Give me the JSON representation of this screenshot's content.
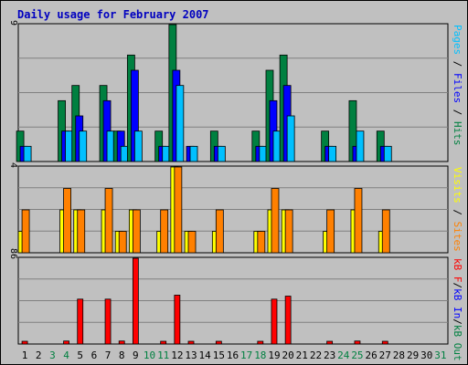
{
  "chart_data": {
    "type": "bar",
    "title": "Daily usage for February 2007",
    "days": [
      {
        "label": "1",
        "weekend": false
      },
      {
        "label": "2",
        "weekend": false
      },
      {
        "label": "3",
        "weekend": true
      },
      {
        "label": "4",
        "weekend": true
      },
      {
        "label": "5",
        "weekend": false
      },
      {
        "label": "6",
        "weekend": false
      },
      {
        "label": "7",
        "weekend": false
      },
      {
        "label": "8",
        "weekend": false
      },
      {
        "label": "9",
        "weekend": false
      },
      {
        "label": "10",
        "weekend": true
      },
      {
        "label": "11",
        "weekend": true
      },
      {
        "label": "12",
        "weekend": false
      },
      {
        "label": "13",
        "weekend": false
      },
      {
        "label": "14",
        "weekend": false
      },
      {
        "label": "15",
        "weekend": false
      },
      {
        "label": "16",
        "weekend": false
      },
      {
        "label": "17",
        "weekend": true
      },
      {
        "label": "18",
        "weekend": true
      },
      {
        "label": "19",
        "weekend": false
      },
      {
        "label": "20",
        "weekend": false
      },
      {
        "label": "21",
        "weekend": false
      },
      {
        "label": "22",
        "weekend": false
      },
      {
        "label": "23",
        "weekend": false
      },
      {
        "label": "24",
        "weekend": true
      },
      {
        "label": "25",
        "weekend": true
      },
      {
        "label": "26",
        "weekend": false
      },
      {
        "label": "27",
        "weekend": false
      },
      {
        "label": "28",
        "weekend": false
      },
      {
        "label": "29",
        "weekend": false
      },
      {
        "label": "30",
        "weekend": false
      },
      {
        "label": "31",
        "weekend": true
      }
    ],
    "panels": [
      {
        "id": "hits",
        "ymax": 9,
        "ymax_label": "9",
        "legend": [
          {
            "text": "Pages",
            "color": "#00c0ff"
          },
          {
            "text": " / ",
            "color": "#000000"
          },
          {
            "text": "Files",
            "color": "#0000ff"
          },
          {
            "text": " / ",
            "color": "#000000"
          },
          {
            "text": "Hits",
            "color": "#008040"
          }
        ],
        "series": [
          {
            "name": "Hits",
            "color": "#008040",
            "values": [
              2,
              0,
              0,
              4,
              5,
              0,
              5,
              2,
              7,
              0,
              2,
              9,
              0,
              0,
              2,
              0,
              0,
              2,
              6,
              7,
              0,
              0,
              2,
              0,
              4,
              0,
              2,
              0,
              0,
              0,
              0
            ]
          },
          {
            "name": "Files",
            "color": "#0000ff",
            "values": [
              1,
              0,
              0,
              2,
              3,
              0,
              4,
              2,
              6,
              0,
              1,
              6,
              1,
              0,
              1,
              0,
              0,
              1,
              4,
              5,
              0,
              0,
              1,
              0,
              1,
              0,
              1,
              0,
              0,
              0,
              0
            ]
          },
          {
            "name": "Pages",
            "color": "#00c0ff",
            "values": [
              1,
              0,
              0,
              2,
              2,
              0,
              2,
              1,
              2,
              0,
              1,
              5,
              1,
              0,
              1,
              0,
              0,
              1,
              2,
              3,
              0,
              0,
              1,
              0,
              2,
              0,
              1,
              0,
              0,
              0,
              0
            ]
          }
        ]
      },
      {
        "id": "visits",
        "ymax": 4,
        "ymax_label": "4",
        "legend": [
          {
            "text": "Visits",
            "color": "#ffff00"
          },
          {
            "text": " / ",
            "color": "#000000"
          },
          {
            "text": "Sites",
            "color": "#ff8000"
          }
        ],
        "series": [
          {
            "name": "Visits",
            "color": "#ffff00",
            "values": [
              1,
              0,
              0,
              2,
              2,
              0,
              2,
              1,
              2,
              0,
              1,
              4,
              1,
              0,
              1,
              0,
              0,
              1,
              2,
              2,
              0,
              0,
              1,
              0,
              2,
              0,
              1,
              0,
              0,
              0,
              0
            ]
          },
          {
            "name": "Sites",
            "color": "#ff8000",
            "values": [
              2,
              0,
              0,
              3,
              2,
              0,
              3,
              1,
              2,
              0,
              2,
              4,
              1,
              0,
              2,
              0,
              0,
              1,
              3,
              2,
              0,
              0,
              2,
              0,
              3,
              0,
              2,
              0,
              0,
              0,
              0
            ]
          }
        ]
      },
      {
        "id": "kbytes",
        "ymax": 86,
        "ymax_label": "86",
        "legend": [
          {
            "text": "kB F",
            "color": "#ff0000"
          },
          {
            "text": "/",
            "color": "#000000"
          },
          {
            "text": "kB In",
            "color": "#0000ff"
          },
          {
            "text": "/",
            "color": "#000000"
          },
          {
            "text": "kB Out",
            "color": "#008040"
          }
        ],
        "series": [
          {
            "name": "kB F",
            "color": "#ff0000",
            "values": [
              2,
              0,
              0,
              3,
              45,
              0,
              45,
              3,
              86,
              0,
              2,
              49,
              2,
              0,
              2,
              0,
              0,
              2,
              45,
              48,
              0,
              0,
              2,
              0,
              3,
              0,
              2,
              0,
              0,
              0,
              0
            ]
          }
        ]
      }
    ]
  }
}
